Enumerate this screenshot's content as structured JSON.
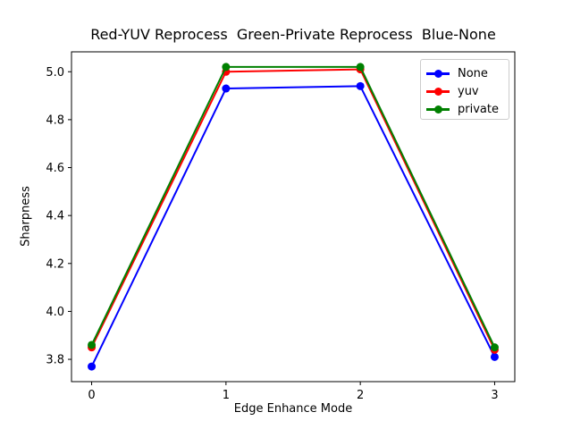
{
  "chart_data": {
    "type": "line",
    "title": "Red-YUV Reprocess  Green-Private Reprocess  Blue-None",
    "xlabel": "Edge Enhance Mode",
    "ylabel": "Sharpness",
    "x": [
      0,
      1,
      2,
      3
    ],
    "series": [
      {
        "name": "None",
        "color": "#0000ff",
        "values": [
          3.77,
          4.93,
          4.94,
          3.81
        ]
      },
      {
        "name": "yuv",
        "color": "#ff0000",
        "values": [
          3.85,
          5.0,
          5.01,
          3.84
        ]
      },
      {
        "name": "private",
        "color": "#008000",
        "values": [
          3.86,
          5.02,
          5.02,
          3.85
        ]
      }
    ],
    "xticks": [
      0,
      1,
      2,
      3
    ],
    "yticks": [
      3.8,
      4.0,
      4.2,
      4.4,
      4.6,
      4.8,
      5.0
    ],
    "xlim": [
      -0.15,
      3.15
    ],
    "ylim": [
      3.707,
      5.083
    ],
    "grid": false,
    "legend": {
      "position": "upper right",
      "labels": [
        "None",
        "yuv",
        "private"
      ]
    },
    "marker": "circle",
    "background": "#ffffff",
    "axis_color": "#000000",
    "legend_border_color": "#cccccc"
  }
}
